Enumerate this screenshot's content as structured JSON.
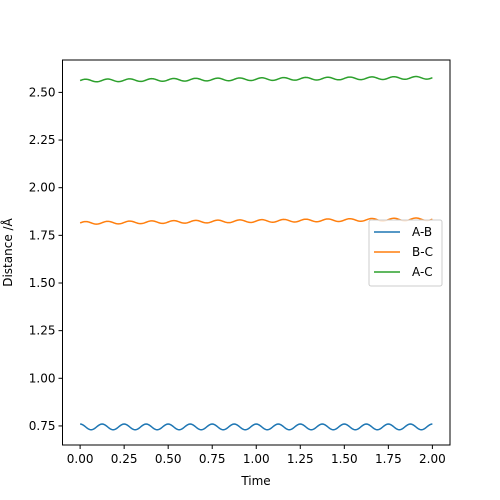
{
  "chart_data": {
    "type": "line",
    "title": "",
    "xlabel": "Time",
    "ylabel": "Distance /Å",
    "xlim": [
      -0.1,
      2.1
    ],
    "ylim": [
      0.65,
      2.67
    ],
    "xticks": [
      0.0,
      0.25,
      0.5,
      0.75,
      1.0,
      1.25,
      1.5,
      1.75,
      2.0
    ],
    "xtick_labels": [
      "0.00",
      "0.25",
      "0.50",
      "0.75",
      "1.00",
      "1.25",
      "1.50",
      "1.75",
      "2.00"
    ],
    "yticks": [
      0.75,
      1.0,
      1.25,
      1.5,
      1.75,
      2.0,
      2.25,
      2.5
    ],
    "ytick_labels": [
      "0.75",
      "1.00",
      "1.25",
      "1.50",
      "1.75",
      "2.00",
      "2.25",
      "2.50"
    ],
    "grid": false,
    "legend_position": "center-right",
    "x_range": [
      0.0,
      2.0
    ],
    "series": [
      {
        "name": "A-B",
        "color": "#1f77b4",
        "base": 0.745,
        "trend": 0.0,
        "amplitude": 0.015,
        "period": 0.125,
        "phase": 1.5708
      },
      {
        "name": "B-C",
        "color": "#ff7f0e",
        "base": 1.815,
        "trend": 0.02,
        "amplitude": 0.007,
        "period": 0.125,
        "phase": 0.0
      },
      {
        "name": "A-C",
        "color": "#2ca02c",
        "base": 2.562,
        "trend": 0.015,
        "amplitude": 0.007,
        "period": 0.125,
        "phase": 0.0
      }
    ]
  }
}
